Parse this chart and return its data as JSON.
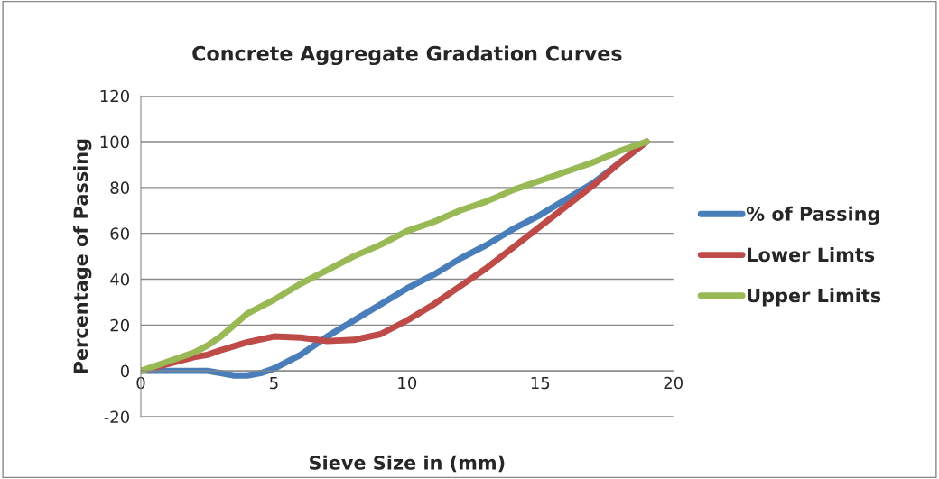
{
  "chart_data": {
    "type": "line",
    "title": "Concrete Aggregate Gradation Curves",
    "xlabel": "Sieve Size in (mm)",
    "ylabel": "Percentage of Passing",
    "xlim": [
      0,
      20
    ],
    "xticks": [
      0,
      5,
      10,
      15,
      20
    ],
    "ylim": [
      -20,
      120
    ],
    "yticks": [
      -20,
      0,
      20,
      40,
      60,
      80,
      100,
      120
    ],
    "grid": "y",
    "legend": "right",
    "marker": "none",
    "line_style": "solid",
    "series": [
      {
        "name": "% of Passing",
        "color": "#4a7ebb",
        "x": [
          0,
          1,
          2,
          2.5,
          3,
          3.5,
          4,
          4.5,
          5,
          6,
          7,
          8,
          9,
          10,
          11,
          12,
          13,
          14,
          15,
          16,
          17,
          18,
          19
        ],
        "values": [
          0,
          0,
          0,
          0,
          -1,
          -2,
          -2,
          -1,
          1,
          7,
          15,
          22,
          29,
          36,
          42,
          49,
          55,
          62,
          68,
          75,
          82,
          91,
          100
        ]
      },
      {
        "name": "Lower Limts",
        "color": "#be4b48",
        "x": [
          0,
          1,
          2,
          2.5,
          3,
          4,
          5,
          6,
          7,
          8,
          9,
          10,
          11,
          12,
          13,
          14,
          15,
          16,
          17,
          18,
          19
        ],
        "values": [
          0,
          3,
          6,
          7,
          9,
          12.5,
          15,
          14.5,
          13,
          13.5,
          16,
          22,
          29,
          37,
          45,
          54,
          63,
          72,
          81,
          91,
          100
        ]
      },
      {
        "name": "Upper Limits",
        "color": "#98b954",
        "x": [
          0,
          1,
          2,
          2.5,
          3,
          4,
          5,
          6,
          7,
          8,
          9,
          10,
          11,
          12,
          13,
          14,
          15,
          16,
          17,
          18,
          19
        ],
        "values": [
          0,
          4,
          8,
          11,
          15,
          25,
          31,
          38,
          44,
          50,
          55,
          61,
          65,
          70,
          74,
          79,
          83,
          87,
          91,
          96,
          100
        ]
      }
    ]
  }
}
